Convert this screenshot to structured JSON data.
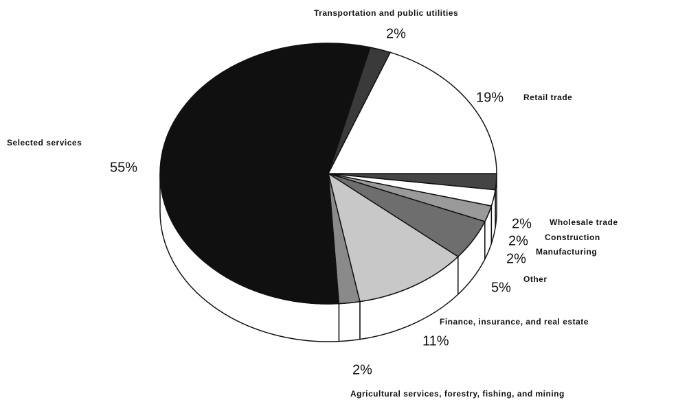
{
  "chart_data": {
    "type": "pie",
    "categories": [
      "Wholesale trade",
      "Construction",
      "Manufacturing",
      "Other",
      "Finance, insurance, and real estate",
      "Agricultural services, forestry, fishing, and mining",
      "Selected services",
      "Transportation and public utilities",
      "Retail trade"
    ],
    "values": [
      2,
      2,
      2,
      5,
      11,
      2,
      55,
      2,
      19
    ],
    "value_labels": [
      "2%",
      "2%",
      "2%",
      "5%",
      "11%",
      "2%",
      "55%",
      "2%",
      "19%"
    ],
    "colors": [
      "#444444",
      "#ffffff",
      "#9a9a9a",
      "#6e6e6e",
      "#c8c8c8",
      "#8a8a8a",
      "#101010",
      "#3a3a3a",
      "#ffffff"
    ]
  }
}
